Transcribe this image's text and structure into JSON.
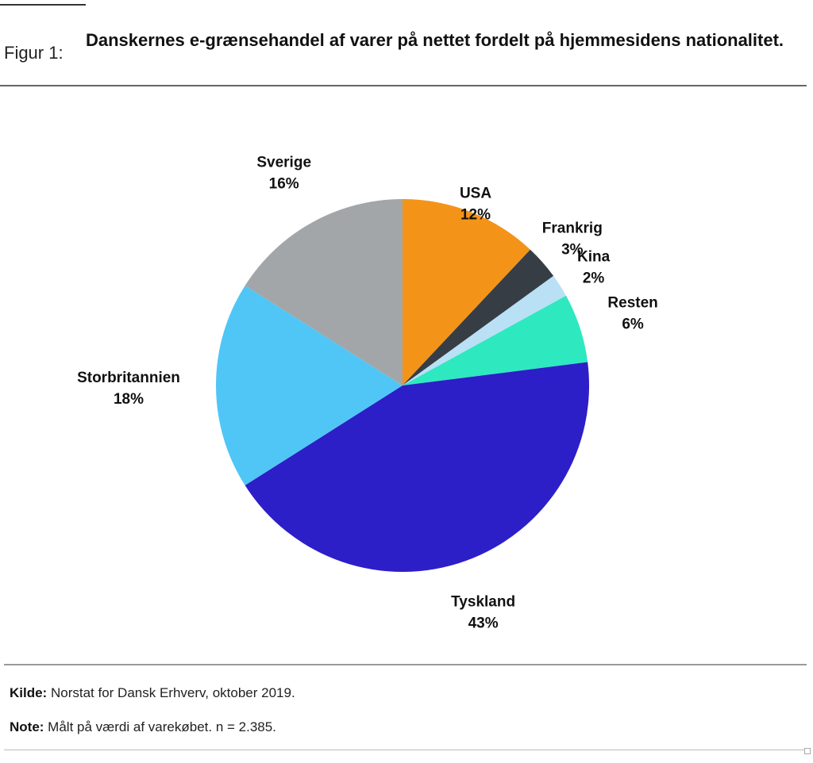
{
  "figure": {
    "label": "Figur 1:",
    "title": "Danskernes e-grænsehandel af varer på nettet fordelt på hjemmesidens nationalitet."
  },
  "chart_data": {
    "type": "pie",
    "start_category": "USA",
    "direction": "clockwise",
    "categories": [
      "USA",
      "Frankrig",
      "Kina",
      "Resten",
      "Tyskland",
      "Storbritannien",
      "Sverige"
    ],
    "values": [
      12,
      3,
      2,
      6,
      43,
      18,
      16
    ],
    "value_labels": [
      "12%",
      "3%",
      "2%",
      "6%",
      "43%",
      "18%",
      "16%"
    ],
    "colors": [
      "#f39419",
      "#363d45",
      "#b9e0f5",
      "#2ee8c0",
      "#2c1fc8",
      "#4fc6f6",
      "#a3a6a8"
    ],
    "legend": "none"
  },
  "footer": {
    "source_label": "Kilde:",
    "source_text": " Norstat for Dansk Erhverv, oktober 2019.",
    "note_label": "Note:",
    "note_text": " Målt på værdi af varekøbet. n = 2.385."
  }
}
